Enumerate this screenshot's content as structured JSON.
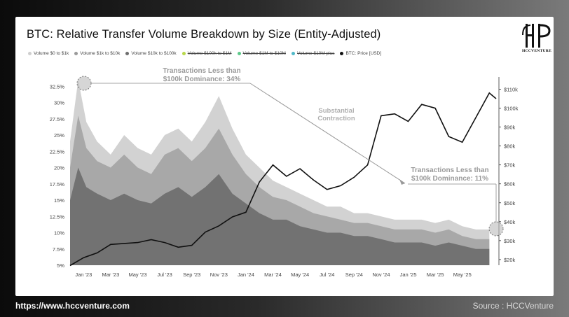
{
  "chart_data": {
    "type": "area",
    "title": "BTC: Relative Transfer Volume Breakdown by Size (Entity-Adjusted)",
    "x_labels": [
      "Jan '23",
      "Mar '23",
      "May '23",
      "Jul '23",
      "Sep '23",
      "Nov '23",
      "Jan '24",
      "Mar '24",
      "May '24",
      "Jul '24",
      "Sep '24",
      "Nov '24",
      "Jan '25",
      "Mar '25",
      "May '25"
    ],
    "x_range": [
      "2022-12",
      "2025-07"
    ],
    "y_left": {
      "ticks": [
        "5%",
        "7.5%",
        "10%",
        "12.5%",
        "15%",
        "17.5%",
        "20%",
        "22.5%",
        "25%",
        "27.5%",
        "30%",
        "32.5%"
      ],
      "range": [
        5,
        33.5
      ]
    },
    "y_right": {
      "ticks": [
        "$20k",
        "$30k",
        "$40k",
        "$50k",
        "$60k",
        "$70k",
        "$80k",
        "$90k",
        "$100k",
        "$110k"
      ],
      "range": [
        17000,
        115000
      ]
    },
    "legend": [
      {
        "name": "Volume $0 to $1k",
        "color": "#cfcfcf",
        "hidden": false
      },
      {
        "name": "Volume $1k to $10k",
        "color": "#9a9a9a",
        "hidden": false
      },
      {
        "name": "Volume $10k to $100k",
        "color": "#6e6e6e",
        "hidden": false
      },
      {
        "name": "Volume $100k to $1M",
        "color": "#b8d84a",
        "hidden": true
      },
      {
        "name": "Volume $1M to $10M",
        "color": "#5cc98a",
        "hidden": true
      },
      {
        "name": "Volume $10M plus",
        "color": "#4fb8c8",
        "hidden": true
      },
      {
        "name": "BTC: Price [USD]",
        "color": "#111111",
        "hidden": false
      }
    ],
    "series": [
      {
        "name": "Volume $0 to $1k (cumulative top, %)",
        "points": [
          [
            0,
            24
          ],
          [
            0.6,
            33.5
          ],
          [
            1.2,
            27
          ],
          [
            2,
            24
          ],
          [
            3,
            22
          ],
          [
            4,
            25
          ],
          [
            5,
            23
          ],
          [
            6,
            22
          ],
          [
            7,
            25
          ],
          [
            8,
            26
          ],
          [
            9,
            24
          ],
          [
            10,
            27
          ],
          [
            11,
            31
          ],
          [
            12,
            26
          ],
          [
            13,
            22
          ],
          [
            14,
            20
          ],
          [
            15,
            18
          ],
          [
            16,
            17
          ],
          [
            17,
            16
          ],
          [
            18,
            15
          ],
          [
            19,
            14
          ],
          [
            20,
            14
          ],
          [
            21,
            13
          ],
          [
            22,
            13
          ],
          [
            23,
            12.5
          ],
          [
            24,
            12
          ],
          [
            25,
            12
          ],
          [
            26,
            12
          ],
          [
            27,
            11.5
          ],
          [
            28,
            12
          ],
          [
            29,
            11
          ],
          [
            30,
            10.5
          ],
          [
            31,
            10.5
          ]
        ]
      },
      {
        "name": "Volume $1k to $10k (cumulative top, %)",
        "points": [
          [
            0,
            20
          ],
          [
            0.6,
            28
          ],
          [
            1.2,
            23
          ],
          [
            2,
            21
          ],
          [
            3,
            20
          ],
          [
            4,
            22
          ],
          [
            5,
            20
          ],
          [
            6,
            19
          ],
          [
            7,
            22
          ],
          [
            8,
            23
          ],
          [
            9,
            21
          ],
          [
            10,
            23
          ],
          [
            11,
            26
          ],
          [
            12,
            22
          ],
          [
            13,
            19
          ],
          [
            14,
            17
          ],
          [
            15,
            15.5
          ],
          [
            16,
            15
          ],
          [
            17,
            14
          ],
          [
            18,
            13
          ],
          [
            19,
            12.5
          ],
          [
            20,
            12
          ],
          [
            21,
            11.5
          ],
          [
            22,
            11.5
          ],
          [
            23,
            11
          ],
          [
            24,
            10.5
          ],
          [
            25,
            10.5
          ],
          [
            26,
            10.5
          ],
          [
            27,
            10
          ],
          [
            28,
            10.5
          ],
          [
            29,
            9.5
          ],
          [
            30,
            9
          ],
          [
            31,
            9
          ]
        ]
      },
      {
        "name": "Volume $10k to $100k (cumulative top, %)",
        "points": [
          [
            0,
            15
          ],
          [
            0.6,
            20
          ],
          [
            1.2,
            17
          ],
          [
            2,
            16
          ],
          [
            3,
            15
          ],
          [
            4,
            16
          ],
          [
            5,
            15
          ],
          [
            6,
            14.5
          ],
          [
            7,
            16
          ],
          [
            8,
            17
          ],
          [
            9,
            15.5
          ],
          [
            10,
            17
          ],
          [
            11,
            19
          ],
          [
            12,
            16
          ],
          [
            13,
            14.5
          ],
          [
            14,
            13
          ],
          [
            15,
            12
          ],
          [
            16,
            12
          ],
          [
            17,
            11
          ],
          [
            18,
            10.5
          ],
          [
            19,
            10
          ],
          [
            20,
            10
          ],
          [
            21,
            9.5
          ],
          [
            22,
            9.5
          ],
          [
            23,
            9
          ],
          [
            24,
            8.5
          ],
          [
            25,
            8.5
          ],
          [
            26,
            8.5
          ],
          [
            27,
            8
          ],
          [
            28,
            8.5
          ],
          [
            29,
            8
          ],
          [
            30,
            7.5
          ],
          [
            31,
            7.5
          ]
        ]
      },
      {
        "name": "BTC: Price [USD]",
        "points": [
          [
            0,
            16800
          ],
          [
            1,
            21000
          ],
          [
            2,
            23500
          ],
          [
            3,
            28000
          ],
          [
            4,
            28500
          ],
          [
            5,
            29000
          ],
          [
            6,
            30500
          ],
          [
            7,
            29000
          ],
          [
            8,
            26500
          ],
          [
            9,
            27500
          ],
          [
            10,
            34500
          ],
          [
            11,
            37800
          ],
          [
            12,
            42500
          ],
          [
            13,
            45000
          ],
          [
            14,
            61000
          ],
          [
            15,
            70000
          ],
          [
            16,
            64000
          ],
          [
            17,
            68000
          ],
          [
            18,
            62000
          ],
          [
            19,
            57000
          ],
          [
            20,
            59000
          ],
          [
            21,
            63500
          ],
          [
            22,
            70000
          ],
          [
            23,
            96000
          ],
          [
            24,
            97000
          ],
          [
            25,
            93000
          ],
          [
            26,
            102000
          ],
          [
            27,
            100000
          ],
          [
            28,
            85000
          ],
          [
            29,
            82000
          ],
          [
            30,
            95000
          ],
          [
            31,
            108000
          ],
          [
            31.5,
            105000
          ]
        ]
      }
    ],
    "annotations": [
      {
        "text": "Transactions Less than $100k Dominance: 34%"
      },
      {
        "text": "Substantial Contraction"
      },
      {
        "text": "Transactions Less than $100k Dominance: 11%"
      }
    ],
    "grid": false,
    "legend_placement": "top-left"
  },
  "footer": {
    "url": "https://www.hccventure.com",
    "source": "Source : HCCVenture"
  },
  "logo": {
    "text": "HCCVENTURE"
  },
  "annotation_lines": {
    "a1": [
      "Transactions Less than",
      "$100k Dominance: 34%"
    ],
    "a2": [
      "Substantial",
      "Contraction"
    ],
    "a3": [
      "Transactions Less than",
      "$100k Dominance: 11%"
    ]
  }
}
